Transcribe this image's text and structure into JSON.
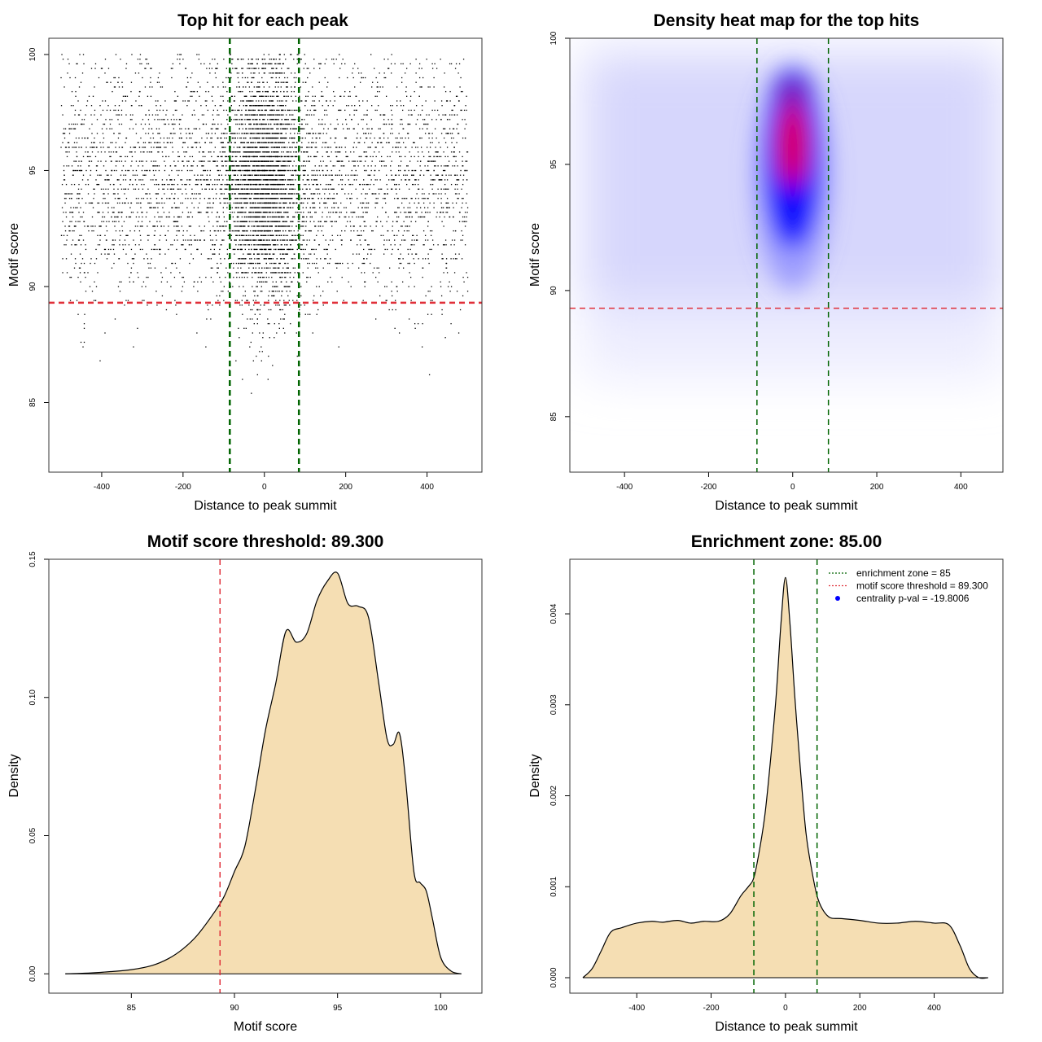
{
  "colors": {
    "threshold_line": "#e0303a",
    "zone_line": "#006400",
    "density_fill": "#f5deb3",
    "points": "#000000",
    "heat_low": "#ffffff",
    "heat_mid": "#0000ff",
    "heat_high": "#ff0000",
    "legend_point": "#0000ff"
  },
  "chart_data": [
    {
      "type": "scatter",
      "title": "Top hit for each peak",
      "xlabel": "Distance to peak summit",
      "ylabel": "Motif score",
      "xlim": [
        -530,
        535
      ],
      "ylim": [
        82,
        100.7
      ],
      "xticks": [
        -400,
        -200,
        0,
        200,
        400
      ],
      "xtick_labels": [
        "-400",
        "-200",
        "0",
        "200",
        "400"
      ],
      "yticks": [
        85,
        90,
        95,
        100
      ],
      "ytick_labels": [
        "85",
        "90",
        "95",
        "100"
      ],
      "hlines": [
        {
          "y": 89.3,
          "color": "threshold"
        }
      ],
      "vlines": [
        {
          "x": -85,
          "color": "zone"
        },
        {
          "x": 85,
          "color": "zone"
        }
      ],
      "point_model": {
        "n_points": 6800,
        "x_range": [
          -500,
          500
        ],
        "central_fraction": 0.42,
        "central_sd": 50,
        "score_mean": 94.6,
        "score_sd": 2.6,
        "score_max": 100
      },
      "grid": false
    },
    {
      "type": "heatmap",
      "title": "Density heat map for the top hits",
      "xlabel": "Distance to peak summit",
      "ylabel": "Motif score",
      "xlim": [
        -530,
        500
      ],
      "ylim": [
        82.8,
        100
      ],
      "xticks": [
        -400,
        -200,
        0,
        200,
        400
      ],
      "xtick_labels": [
        "-400",
        "-200",
        "0",
        "200",
        "400"
      ],
      "yticks": [
        85,
        90,
        95,
        100
      ],
      "ytick_labels": [
        "85",
        "90",
        "95",
        "100"
      ],
      "hlines": [
        {
          "y": 89.3,
          "color": "threshold"
        }
      ],
      "vlines": [
        {
          "x": -85,
          "color": "zone"
        },
        {
          "x": 85,
          "color": "zone"
        }
      ],
      "color_scale": [
        "white",
        "blue",
        "red"
      ],
      "peak": {
        "x": 0,
        "y": 96
      },
      "grid": false
    },
    {
      "type": "area",
      "title": "Motif score threshold: 89.300",
      "xlabel": "Motif score",
      "ylabel": "Density",
      "xlim": [
        81,
        102
      ],
      "ylim": [
        -0.007,
        0.15
      ],
      "xticks": [
        85,
        90,
        95,
        100
      ],
      "xtick_labels": [
        "85",
        "90",
        "95",
        "100"
      ],
      "yticks": [
        0.0,
        0.05,
        0.1,
        0.15
      ],
      "ytick_labels": [
        "0.00",
        "0.05",
        "0.10",
        "0.15"
      ],
      "x": [
        81.8,
        83.0,
        84.0,
        85.0,
        86.0,
        86.8,
        87.5,
        88.2,
        89.0,
        89.5,
        90.0,
        90.5,
        91.0,
        91.5,
        92.0,
        92.5,
        93.0,
        93.5,
        94.0,
        94.5,
        95.0,
        95.5,
        96.0,
        96.5,
        97.0,
        97.4,
        97.7,
        98.0,
        98.3,
        98.7,
        99.0,
        99.3,
        99.6,
        100.0,
        100.5,
        101.0
      ],
      "y": [
        0.0,
        0.0003,
        0.0008,
        0.0015,
        0.003,
        0.0055,
        0.009,
        0.014,
        0.022,
        0.028,
        0.037,
        0.046,
        0.066,
        0.088,
        0.105,
        0.124,
        0.12,
        0.123,
        0.135,
        0.142,
        0.145,
        0.134,
        0.133,
        0.129,
        0.105,
        0.085,
        0.083,
        0.087,
        0.07,
        0.037,
        0.033,
        0.03,
        0.02,
        0.006,
        0.001,
        0.0
      ],
      "vlines": [
        {
          "x": 89.3,
          "color": "threshold"
        }
      ],
      "grid": false
    },
    {
      "type": "area",
      "title": "Enrichment zone: 85.00",
      "xlabel": "Distance to peak summit",
      "ylabel": "Density",
      "xlim": [
        -580,
        585
      ],
      "ylim": [
        -0.00017,
        0.0046
      ],
      "xticks": [
        -400,
        -200,
        0,
        200,
        400
      ],
      "xtick_labels": [
        "-400",
        "-200",
        "0",
        "200",
        "400"
      ],
      "yticks": [
        0.0,
        0.001,
        0.002,
        0.003,
        0.004
      ],
      "ytick_labels": [
        "0.000",
        "0.001",
        "0.002",
        "0.003",
        "0.004"
      ],
      "x": [
        -545,
        -520,
        -495,
        -470,
        -440,
        -400,
        -360,
        -330,
        -290,
        -255,
        -220,
        -180,
        -150,
        -120,
        -100,
        -85,
        -70,
        -55,
        -40,
        -25,
        -12,
        0,
        12,
        25,
        40,
        55,
        70,
        85,
        100,
        120,
        150,
        200,
        250,
        300,
        350,
        400,
        440,
        470,
        495,
        520,
        545
      ],
      "y": [
        0.0,
        0.0001,
        0.0003,
        0.0005,
        0.00055,
        0.0006,
        0.00062,
        0.00061,
        0.00063,
        0.0006,
        0.00062,
        0.00062,
        0.0007,
        0.0009,
        0.001,
        0.0011,
        0.0014,
        0.0018,
        0.0024,
        0.0031,
        0.0039,
        0.0044,
        0.0039,
        0.0031,
        0.0023,
        0.0016,
        0.0012,
        0.0009,
        0.00075,
        0.00066,
        0.00065,
        0.00063,
        0.0006,
        0.0006,
        0.00062,
        0.0006,
        0.00058,
        0.00035,
        0.0001,
        0.0,
        0.0
      ],
      "vlines": [
        {
          "x": -85,
          "color": "zone"
        },
        {
          "x": 85,
          "color": "zone"
        }
      ],
      "legend": {
        "placement": "top-right",
        "entries": [
          {
            "label": "enrichment zone = 85",
            "style": "dotted-line",
            "color": "zone"
          },
          {
            "label": "motif score threshold = 89.300",
            "style": "dotted-line",
            "color": "threshold"
          },
          {
            "label": "centrality p-val = -19.8006",
            "style": "point",
            "color": "legend_point"
          }
        ]
      },
      "grid": false
    }
  ]
}
